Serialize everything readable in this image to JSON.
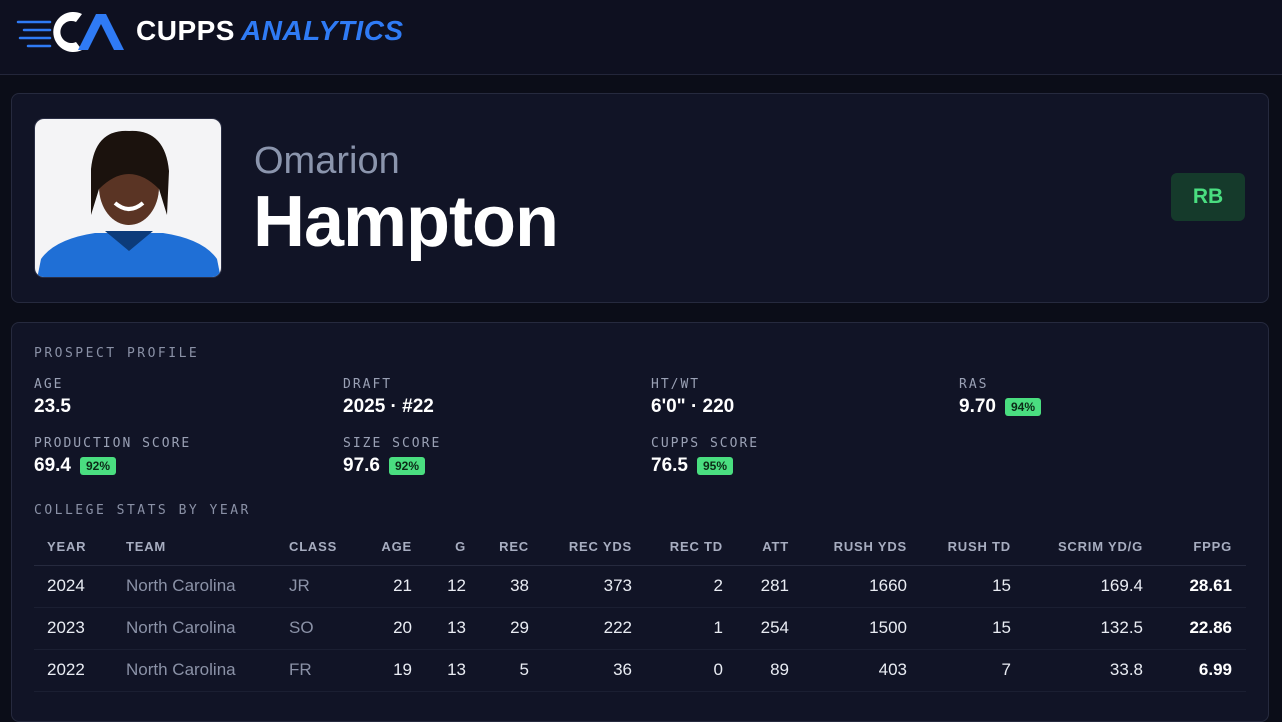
{
  "header": {
    "brand_first": "CUPPS",
    "brand_second": "ANALYTICS"
  },
  "player": {
    "first_name": "Omarion",
    "last_name": "Hampton",
    "position": "RB"
  },
  "profile": {
    "title": "PROSPECT PROFILE",
    "metrics": [
      {
        "label": "AGE",
        "value": "23.5"
      },
      {
        "label": "DRAFT",
        "value": "2025 · #22"
      },
      {
        "label": "HT/WT",
        "value": "6'0\" · 220"
      },
      {
        "label": "RAS",
        "value": "9.70",
        "badge": "94%"
      },
      {
        "label": "PRODUCTION SCORE",
        "value": "69.4",
        "badge": "92%"
      },
      {
        "label": "SIZE SCORE",
        "value": "97.6",
        "badge": "92%"
      },
      {
        "label": "CUPPS SCORE",
        "value": "76.5",
        "badge": "95%"
      }
    ]
  },
  "stats": {
    "title": "COLLEGE STATS BY YEAR",
    "columns": [
      "YEAR",
      "TEAM",
      "CLASS",
      "AGE",
      "G",
      "REC",
      "REC YDS",
      "REC TD",
      "ATT",
      "RUSH YDS",
      "RUSH TD",
      "SCRIM YD/G",
      "FPPG"
    ],
    "rows": [
      [
        "2024",
        "North Carolina",
        "JR",
        "21",
        "12",
        "38",
        "373",
        "2",
        "281",
        "1660",
        "15",
        "169.4",
        "28.61"
      ],
      [
        "2023",
        "North Carolina",
        "SO",
        "20",
        "13",
        "29",
        "222",
        "1",
        "254",
        "1500",
        "15",
        "132.5",
        "22.86"
      ],
      [
        "2022",
        "North Carolina",
        "FR",
        "19",
        "13",
        "5",
        "36",
        "0",
        "89",
        "403",
        "7",
        "33.8",
        "6.99"
      ]
    ]
  }
}
